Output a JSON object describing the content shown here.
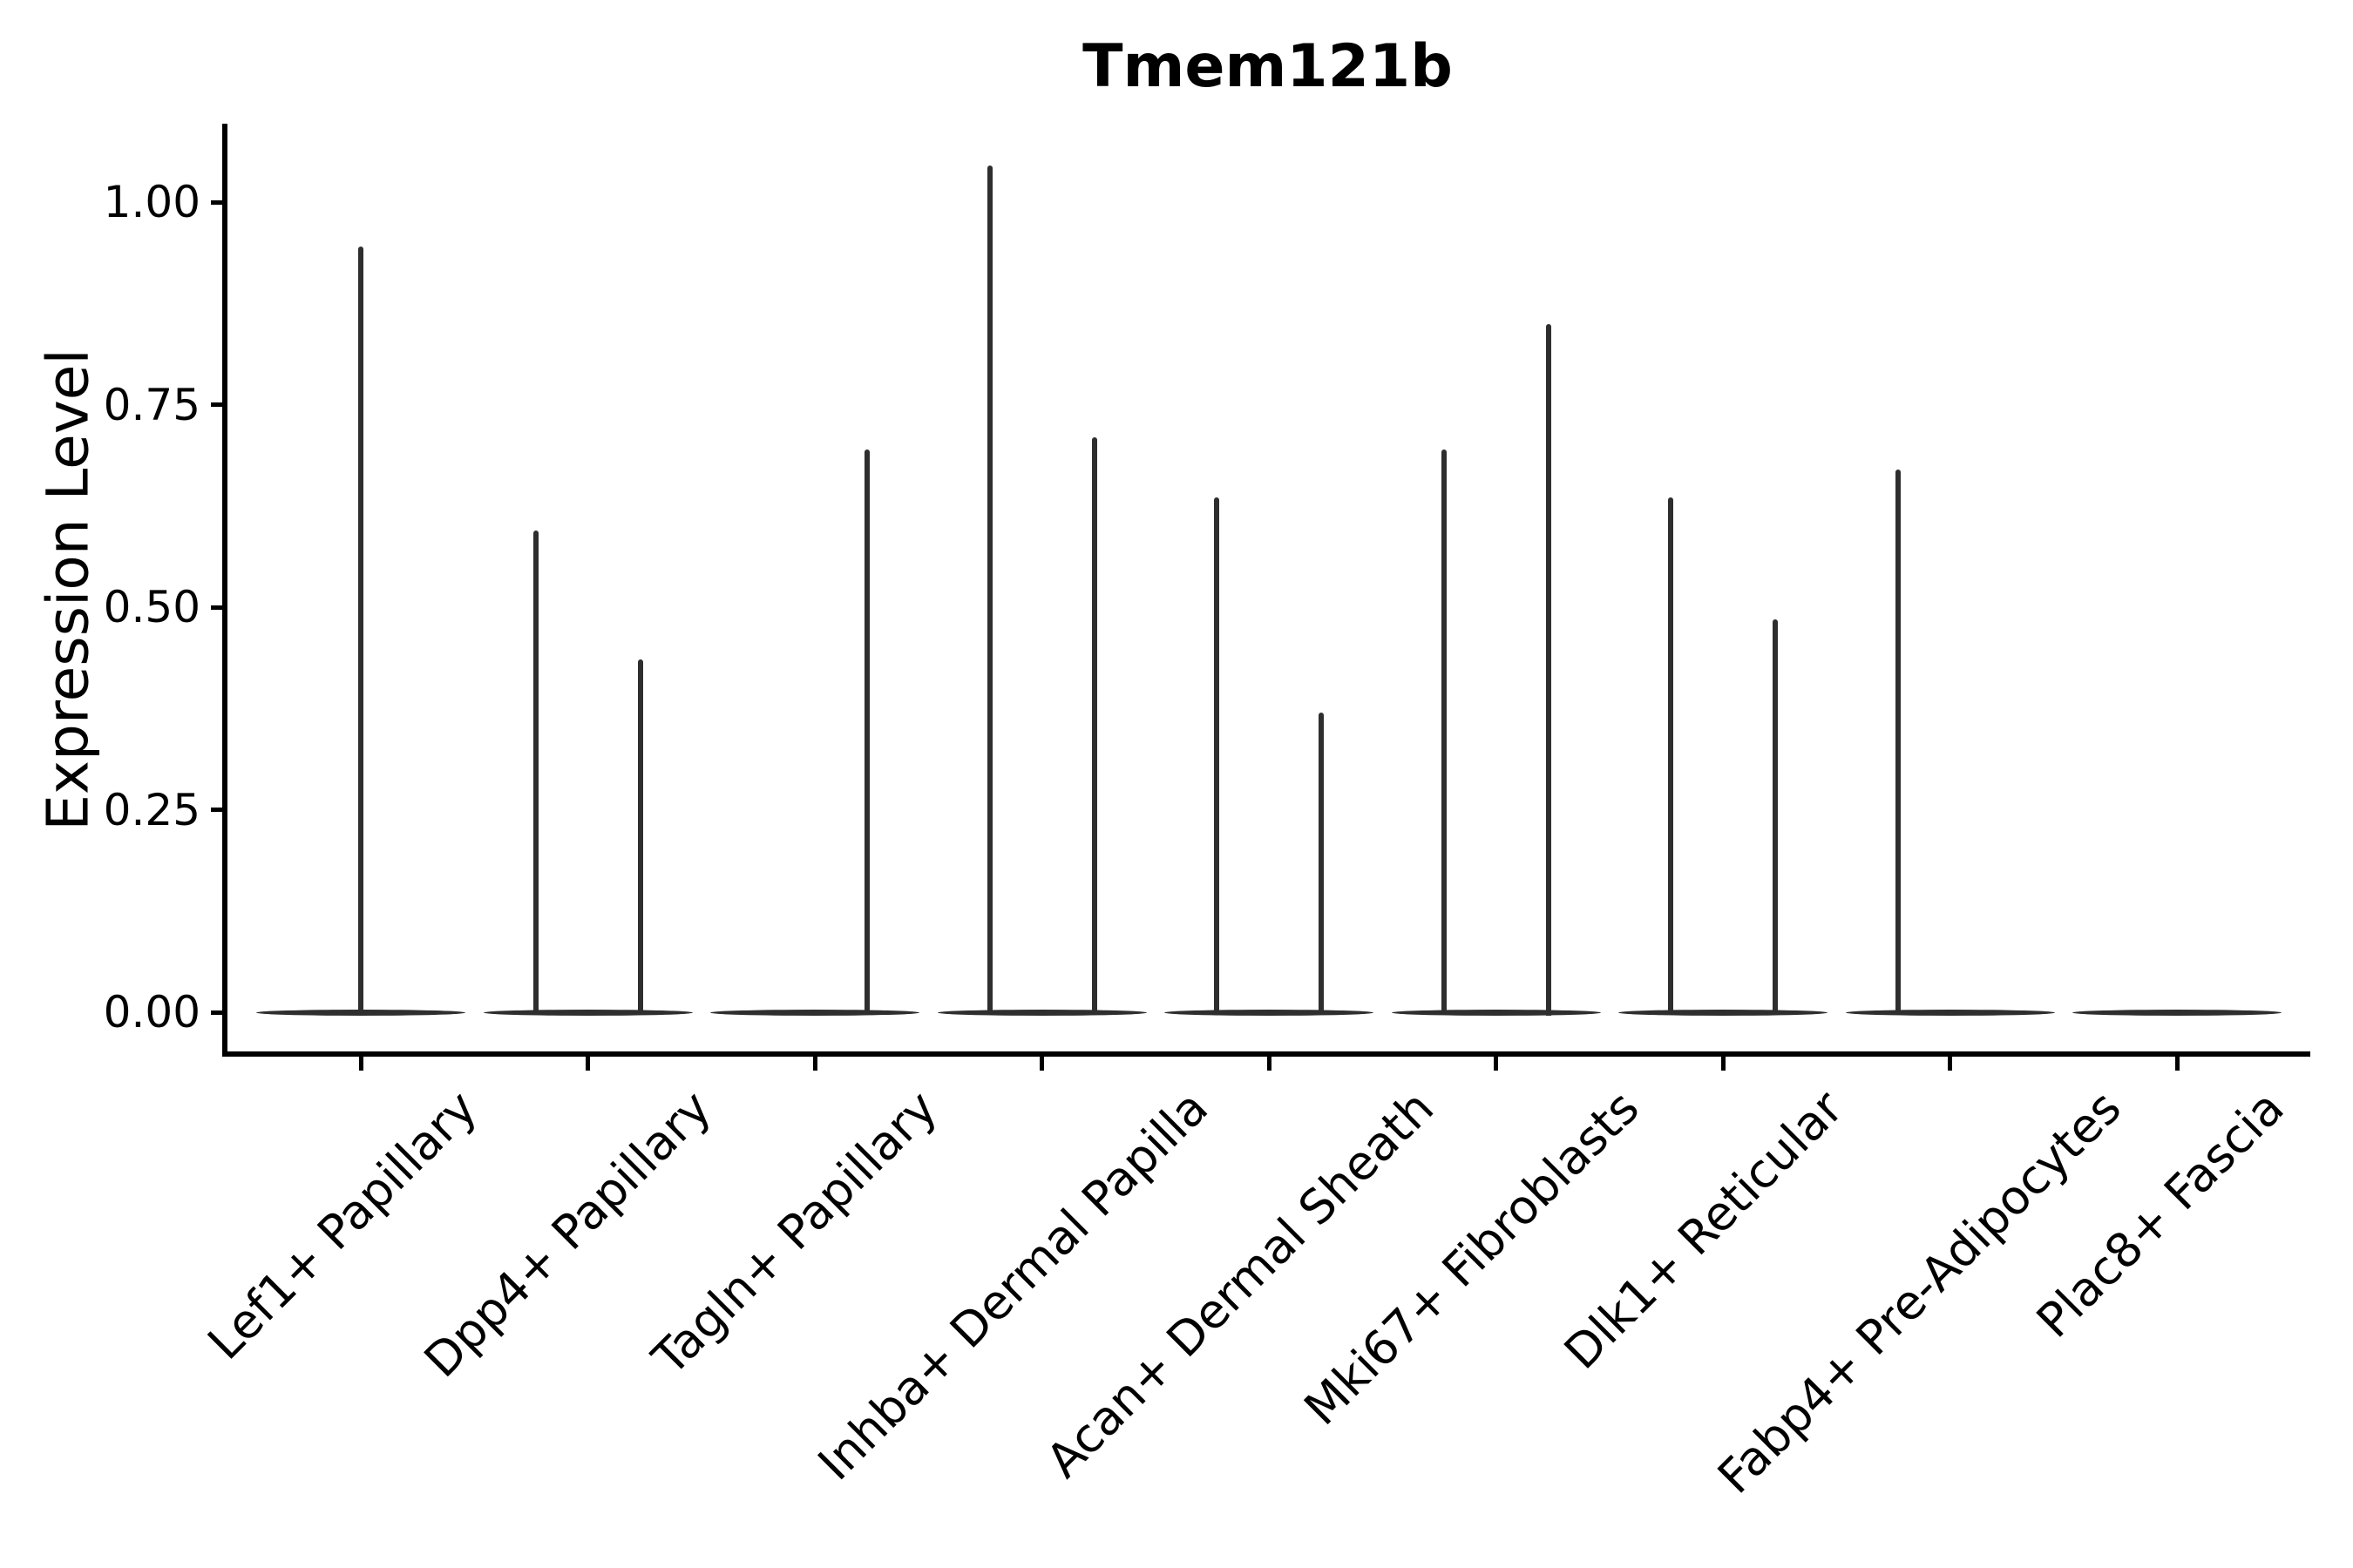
{
  "figure": {
    "title": "Tmem121b",
    "y_axis_label": "Expression Level"
  },
  "chart_data": {
    "type": "violin",
    "title": "Tmem121b",
    "xlabel": "",
    "ylabel": "Expression Level",
    "ylim": [
      -0.05,
      1.1
    ],
    "yticks": [
      {
        "value": 0.0,
        "label": "0.00"
      },
      {
        "value": 0.25,
        "label": "0.25"
      },
      {
        "value": 0.5,
        "label": "0.50"
      },
      {
        "value": 0.75,
        "label": "0.75"
      },
      {
        "value": 1.0,
        "label": "1.00"
      }
    ],
    "grid": false,
    "legend_position": "none",
    "x_tick_label_rotation_deg": 45,
    "categories": [
      "Lef1+ Papillary",
      "Dpp4+ Papillary",
      "Tagln+ Papillary",
      "Inhba+ Dermal Papilla",
      "Acan+ Dermal Sheath",
      "Mki67+ Fibroblasts",
      "Dlk1+ Reticular",
      "Fabp4+ Pre-Adipocytes",
      "Plac8+ Fascia"
    ],
    "violins": [
      {
        "category": "Lef1+ Papillary",
        "baseline_value": 0,
        "spikes": [
          {
            "position": "center",
            "max_expression": 0.945
          }
        ]
      },
      {
        "category": "Dpp4+ Papillary",
        "baseline_value": 0,
        "spikes": [
          {
            "position": "left",
            "max_expression": 0.595
          },
          {
            "position": "right",
            "max_expression": 0.435
          }
        ]
      },
      {
        "category": "Tagln+ Papillary",
        "baseline_value": 0,
        "spikes": [
          {
            "position": "right",
            "max_expression": 0.695
          }
        ]
      },
      {
        "category": "Inhba+ Dermal Papilla",
        "baseline_value": 0,
        "spikes": [
          {
            "position": "left",
            "max_expression": 1.045
          },
          {
            "position": "right",
            "max_expression": 0.71
          }
        ]
      },
      {
        "category": "Acan+ Dermal Sheath",
        "baseline_value": 0,
        "spikes": [
          {
            "position": "left",
            "max_expression": 0.635
          },
          {
            "position": "right",
            "max_expression": 0.37
          }
        ]
      },
      {
        "category": "Mki67+ Fibroblasts",
        "baseline_value": 0,
        "spikes": [
          {
            "position": "left",
            "max_expression": 0.695
          },
          {
            "position": "right",
            "max_expression": 0.85
          }
        ]
      },
      {
        "category": "Dlk1+ Reticular",
        "baseline_value": 0,
        "spikes": [
          {
            "position": "left",
            "max_expression": 0.635
          },
          {
            "position": "right",
            "max_expression": 0.485
          }
        ]
      },
      {
        "category": "Fabp4+ Pre-Adipocytes",
        "baseline_value": 0,
        "spikes": [
          {
            "position": "left",
            "max_expression": 0.67
          }
        ]
      },
      {
        "category": "Plac8+ Fascia",
        "baseline_value": 0,
        "spikes": []
      }
    ],
    "colors": {
      "violin_line": "#2e2e2e",
      "axis": "#000000",
      "text": "#000000",
      "background": "#ffffff"
    }
  }
}
